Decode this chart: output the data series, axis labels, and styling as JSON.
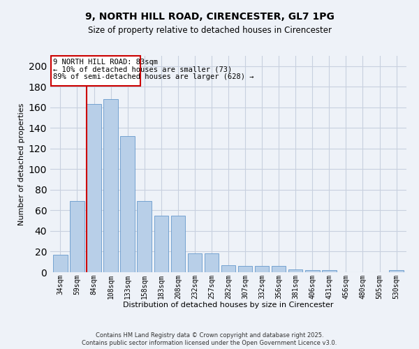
{
  "title": "9, NORTH HILL ROAD, CIRENCESTER, GL7 1PG",
  "subtitle": "Size of property relative to detached houses in Cirencester",
  "xlabel": "Distribution of detached houses by size in Cirencester",
  "ylabel": "Number of detached properties",
  "categories": [
    "34sqm",
    "59sqm",
    "84sqm",
    "108sqm",
    "133sqm",
    "158sqm",
    "183sqm",
    "208sqm",
    "232sqm",
    "257sqm",
    "282sqm",
    "307sqm",
    "332sqm",
    "356sqm",
    "381sqm",
    "406sqm",
    "431sqm",
    "456sqm",
    "480sqm",
    "505sqm",
    "530sqm"
  ],
  "values": [
    17,
    69,
    163,
    168,
    132,
    69,
    55,
    55,
    18,
    18,
    7,
    6,
    6,
    6,
    3,
    2,
    2,
    0,
    0,
    0,
    2
  ],
  "bar_color": "#b8cfe8",
  "bar_edge_color": "#6699cc",
  "ylim": [
    0,
    210
  ],
  "yticks": [
    0,
    20,
    40,
    60,
    80,
    100,
    120,
    140,
    160,
    180,
    200
  ],
  "property_label": "9 NORTH HILL ROAD: 83sqm",
  "annotation_line1": "← 10% of detached houses are smaller (73)",
  "annotation_line2": "89% of semi-detached houses are larger (628) →",
  "vline_bar_index": 2,
  "footer_line1": "Contains HM Land Registry data © Crown copyright and database right 2025.",
  "footer_line2": "Contains public sector information licensed under the Open Government Licence v3.0.",
  "background_color": "#eef2f8",
  "box_color": "#cc0000",
  "grid_color": "#c8d0df"
}
